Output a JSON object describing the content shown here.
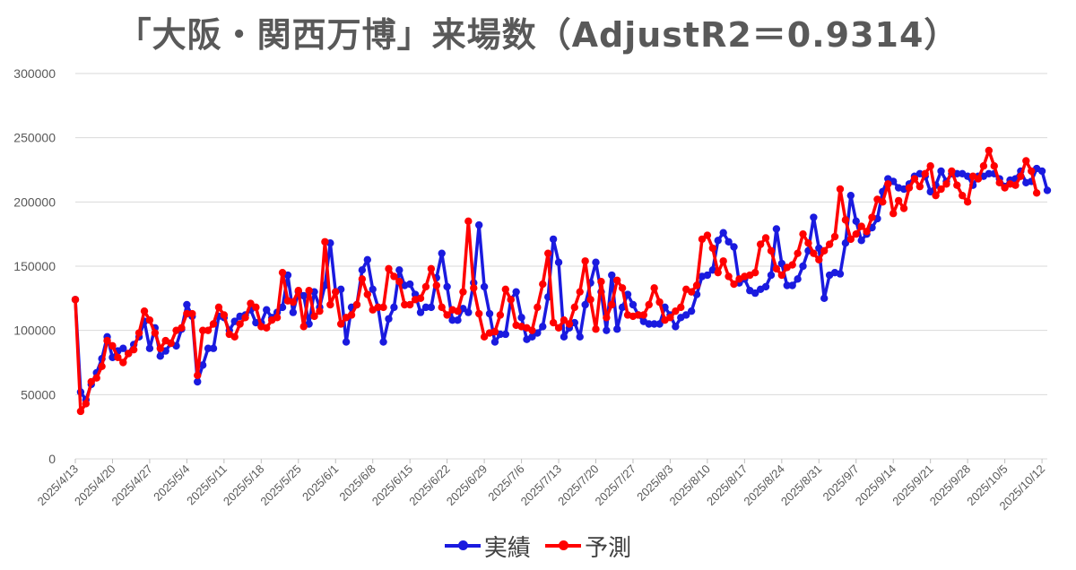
{
  "chart_data": {
    "type": "line",
    "title": "「大阪・関西万博」来場数（AdjustR2＝0.9314）",
    "ylim": [
      0,
      300000
    ],
    "yticks": [
      "0",
      "50000",
      "100000",
      "150000",
      "200000",
      "250000",
      "300000"
    ],
    "start_date": "2025-04-13",
    "xtick_labels": [
      "2025/4/13",
      "2025/4/20",
      "2025/4/27",
      "2025/5/4",
      "2025/5/11",
      "2025/5/18",
      "2025/5/25",
      "2025/6/1",
      "2025/6/8",
      "2025/6/15",
      "2025/6/22",
      "2025/6/29",
      "2025/7/6",
      "2025/7/13",
      "2025/7/20",
      "2025/7/27",
      "2025/8/3",
      "2025/8/10",
      "2025/8/17",
      "2025/8/24",
      "2025/8/31",
      "2025/9/7",
      "2025/9/14",
      "2025/9/21",
      "2025/9/28",
      "2025/10/5",
      "2025/10/12"
    ],
    "grid": true,
    "legend_position": "bottom",
    "series": [
      {
        "name": "実績",
        "color": "#1a1adf",
        "values": [
          124000,
          52000,
          46000,
          58000,
          67000,
          78000,
          95000,
          79000,
          84000,
          86000,
          82000,
          89000,
          95000,
          107000,
          86000,
          102000,
          80000,
          84000,
          90000,
          88000,
          101000,
          120000,
          111000,
          60000,
          73000,
          86000,
          86000,
          111000,
          110000,
          100000,
          107000,
          111000,
          112000,
          116000,
          106000,
          106000,
          116000,
          110000,
          114000,
          118000,
          143000,
          114000,
          130000,
          127000,
          105000,
          130000,
          118000,
          135000,
          168000,
          130000,
          132000,
          91000,
          118000,
          120000,
          147000,
          155000,
          132000,
          118000,
          91000,
          109000,
          118000,
          147000,
          135000,
          136000,
          128000,
          114000,
          118000,
          118000,
          141000,
          160000,
          134000,
          108000,
          108000,
          117000,
          114000,
          137000,
          182000,
          134000,
          113000,
          91000,
          97000,
          97000,
          124000,
          130000,
          110000,
          93000,
          95000,
          98000,
          103000,
          126000,
          171000,
          153000,
          95000,
          102000,
          106000,
          95000,
          120000,
          137000,
          153000,
          130000,
          100000,
          143000,
          101000,
          118000,
          128000,
          120000,
          112000,
          107000,
          105000,
          105000,
          105000,
          118000,
          112000,
          103000,
          110000,
          112000,
          115000,
          128000,
          142000,
          143000,
          147000,
          170000,
          176000,
          169000,
          165000,
          137000,
          140000,
          131000,
          129000,
          132000,
          134000,
          143000,
          179000,
          152000,
          135000,
          135000,
          140000,
          150000,
          162000,
          188000,
          164000,
          125000,
          143000,
          145000,
          144000,
          168000,
          205000,
          185000,
          170000,
          175000,
          180000,
          187000,
          208000,
          218000,
          216000,
          211000,
          210000,
          214000,
          220000,
          222000,
          220000,
          208000,
          213000,
          224000,
          216000,
          222000,
          222000,
          222000,
          220000,
          213000,
          220000,
          220000,
          222000,
          222000,
          218000,
          212000,
          217000,
          218000,
          224000,
          215000,
          216000,
          226000,
          224000,
          209000
        ]
      },
      {
        "name": "予測",
        "color": "#ff0000",
        "values": [
          124000,
          37000,
          43000,
          60000,
          63000,
          72000,
          92000,
          88000,
          79000,
          75000,
          82000,
          85000,
          98000,
          115000,
          108000,
          98000,
          86000,
          92000,
          90000,
          100000,
          102000,
          113000,
          113000,
          65000,
          100000,
          100000,
          105000,
          118000,
          112000,
          97000,
          95000,
          105000,
          110000,
          121000,
          118000,
          103000,
          102000,
          108000,
          110000,
          145000,
          123000,
          122000,
          131000,
          103000,
          131000,
          111000,
          115000,
          169000,
          120000,
          130000,
          105000,
          110000,
          112000,
          120000,
          140000,
          128000,
          116000,
          118000,
          118000,
          148000,
          142000,
          138000,
          120000,
          120000,
          124000,
          125000,
          134000,
          148000,
          135000,
          118000,
          112000,
          116000,
          115000,
          130000,
          185000,
          133000,
          113000,
          95000,
          98000,
          99000,
          112000,
          132000,
          124000,
          104000,
          103000,
          102000,
          100000,
          118000,
          136000,
          160000,
          106000,
          102000,
          108000,
          105000,
          118000,
          130000,
          154000,
          124000,
          101000,
          138000,
          110000,
          120000,
          139000,
          133000,
          112000,
          111000,
          112000,
          112000,
          120000,
          133000,
          122000,
          108000,
          110000,
          115000,
          118000,
          132000,
          130000,
          135000,
          171000,
          174000,
          164000,
          145000,
          154000,
          142000,
          136000,
          140000,
          142000,
          143000,
          145000,
          167000,
          172000,
          162000,
          148000,
          143000,
          149000,
          151000,
          160000,
          175000,
          168000,
          160000,
          155000,
          162000,
          167000,
          173000,
          210000,
          186000,
          171000,
          175000,
          181000,
          177000,
          188000,
          202000,
          200000,
          214000,
          191000,
          201000,
          195000,
          211000,
          218000,
          212000,
          222000,
          228000,
          205000,
          210000,
          214000,
          224000,
          213000,
          205000,
          200000,
          220000,
          218000,
          228000,
          240000,
          228000,
          215000,
          211000,
          214000,
          213000,
          220000,
          232000,
          224000,
          207000
        ]
      }
    ]
  }
}
